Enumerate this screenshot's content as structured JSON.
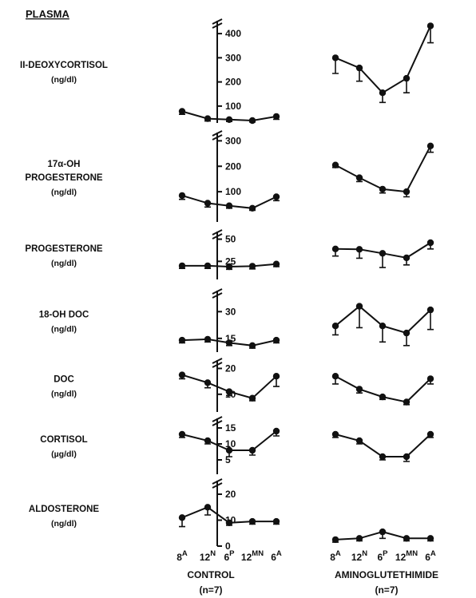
{
  "header": {
    "title": "PLASMA"
  },
  "groups": [
    {
      "label": "CONTROL",
      "n": "(n=7)"
    },
    {
      "label": "AMINOGLUTETHIMIDE",
      "n": "(n=7)"
    }
  ],
  "x_ticks": [
    {
      "base": "8",
      "sup": "A"
    },
    {
      "base": "12",
      "sup": "N"
    },
    {
      "base": "6",
      "sup": "P"
    },
    {
      "base": "12",
      "sup": "MN"
    },
    {
      "base": "6",
      "sup": "A"
    }
  ],
  "chart_data": [
    {
      "type": "line",
      "label": "II-DEOXYCORTISOL",
      "unit": "(ng/dl)",
      "yticks": [
        100,
        200,
        300,
        400
      ],
      "ylim": [
        50,
        440
      ],
      "axis_break": true,
      "series": [
        {
          "group": "CONTROL",
          "values": [
            78,
            48,
            44,
            40,
            57
          ],
          "errors": [
            12,
            10,
            8,
            6,
            12
          ]
        },
        {
          "group": "AMINOGLUTETHIMIDE",
          "values": [
            300,
            258,
            155,
            215,
            432
          ],
          "errors": [
            65,
            55,
            40,
            60,
            70
          ]
        }
      ]
    },
    {
      "type": "line",
      "label": "17α-OH PROGESTERONE",
      "unit": "(ng/dl)",
      "yticks": [
        100,
        200,
        300
      ],
      "ylim": [
        0,
        320
      ],
      "axis_break": true,
      "series": [
        {
          "group": "CONTROL",
          "values": [
            85,
            55,
            45,
            35,
            80
          ],
          "errors": [
            15,
            15,
            10,
            8,
            15
          ]
        },
        {
          "group": "AMINOGLUTETHIMIDE",
          "values": [
            205,
            155,
            110,
            100,
            280
          ],
          "errors": [
            10,
            15,
            15,
            20,
            25
          ]
        }
      ]
    },
    {
      "type": "line",
      "label": "PROGESTERONE",
      "unit": "(ng/dl)",
      "yticks": [
        25,
        50
      ],
      "ylim": [
        10,
        55
      ],
      "axis_break": true,
      "series": [
        {
          "group": "CONTROL",
          "values": [
            20,
            20,
            19,
            19.5,
            22
          ],
          "errors": [
            3,
            3,
            3,
            3,
            3
          ]
        },
        {
          "group": "AMINOGLUTETHIMIDE",
          "values": [
            39,
            38.5,
            34,
            29,
            46
          ],
          "errors": [
            8,
            10,
            16,
            8,
            7
          ]
        }
      ]
    },
    {
      "type": "line",
      "label": "18-OH DOC",
      "unit": "(ng/dl)",
      "yticks": [
        15,
        30
      ],
      "ylim": [
        10,
        40
      ],
      "axis_break": true,
      "series": [
        {
          "group": "CONTROL",
          "values": [
            14,
            14.5,
            12.5,
            11,
            14
          ],
          "errors": [
            1.5,
            1.5,
            1.5,
            1.5,
            1.5
          ]
        },
        {
          "group": "AMINOGLUTETHIMIDE",
          "values": [
            22,
            33,
            22,
            18,
            31
          ],
          "errors": [
            5,
            12,
            9,
            7,
            11
          ]
        }
      ]
    },
    {
      "type": "line",
      "label": "DOC",
      "unit": "(ng/dl)",
      "yticks": [
        10,
        20
      ],
      "ylim": [
        5,
        22
      ],
      "axis_break": true,
      "series": [
        {
          "group": "CONTROL",
          "values": [
            17.5,
            14.5,
            11,
            8.5,
            17
          ],
          "errors": [
            1.5,
            2,
            1.5,
            1,
            4
          ]
        },
        {
          "group": "AMINOGLUTETHIMIDE",
          "values": [
            17,
            12,
            9,
            7,
            16
          ],
          "errors": [
            3,
            1.5,
            1,
            1,
            2
          ]
        }
      ]
    },
    {
      "type": "line",
      "label": "CORTISOL",
      "unit": "(µg/dl)",
      "yticks": [
        5,
        10,
        15
      ],
      "ylim": [
        2,
        17
      ],
      "axis_break": true,
      "series": [
        {
          "group": "CONTROL",
          "values": [
            13,
            11,
            8,
            8,
            14
          ],
          "errors": [
            1,
            1,
            2,
            1.5,
            1.5
          ]
        },
        {
          "group": "AMINOGLUTETHIMIDE",
          "values": [
            13,
            11,
            6,
            6,
            13
          ],
          "errors": [
            1,
            1,
            1,
            1.5,
            1
          ]
        }
      ]
    },
    {
      "type": "line",
      "label": "ALDOSTERONE",
      "unit": "(ng/dl)",
      "yticks": [
        0,
        10,
        20
      ],
      "ylim": [
        0,
        24
      ],
      "axis_break": true,
      "series": [
        {
          "group": "CONTROL",
          "values": [
            11,
            15,
            9,
            9.5,
            9.5
          ],
          "errors": [
            3.5,
            3,
            1,
            1,
            1
          ]
        },
        {
          "group": "AMINOGLUTETHIMIDE",
          "values": [
            2.5,
            3,
            5.5,
            3,
            3
          ],
          "errors": [
            1,
            1,
            2.5,
            1,
            1
          ]
        }
      ]
    }
  ]
}
